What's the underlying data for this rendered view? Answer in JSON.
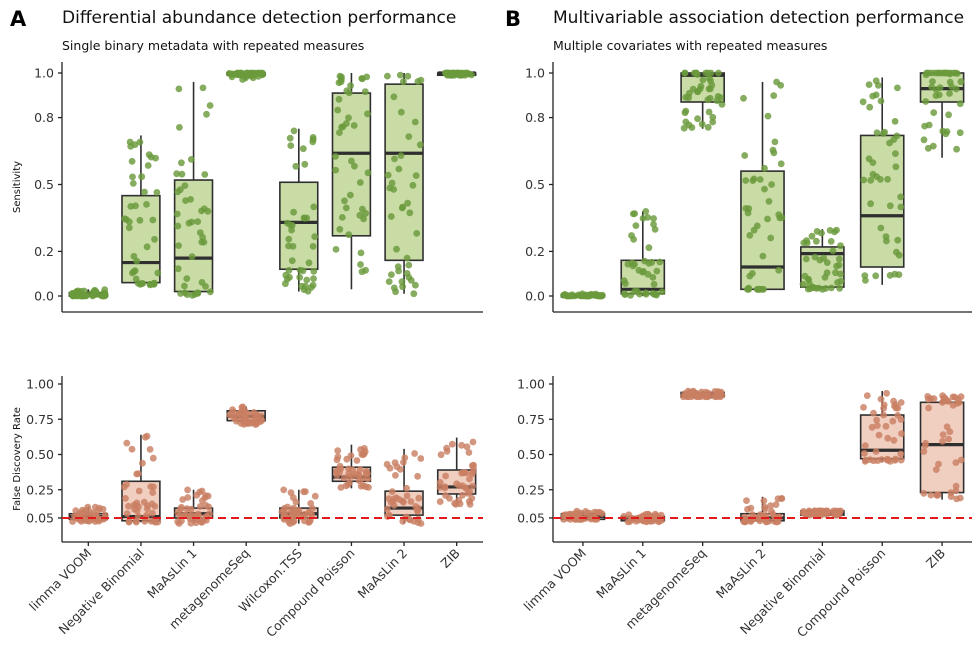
{
  "chart_data": [
    {
      "id": "A-sensitivity",
      "type": "box",
      "panel_letter": "A",
      "title": "Differential abundance detection performance",
      "subtitle": "Single binary metadata with repeated measures",
      "ylabel": "Sensitivity",
      "ylim": [
        0,
        1
      ],
      "yticks": [
        0.0,
        0.2,
        0.5,
        0.8,
        1.0
      ],
      "ytick_labels": [
        "0.0",
        "0.2",
        "0.5",
        "0.8",
        "1.0"
      ],
      "fill": "#c9dca6",
      "point_color": "#6a9a3c",
      "categories": [
        "limma VOOM",
        "Negative Binomial",
        "MaAsLin 1",
        "metagenomeSeq",
        "Wilcoxon.TSS",
        "Compound Poisson",
        "MaAsLin 2",
        "ZIB"
      ],
      "boxes": [
        {
          "low": 0.0,
          "q1": 0.0,
          "median": 0.005,
          "q3": 0.015,
          "high": 0.03
        },
        {
          "low": 0.05,
          "q1": 0.06,
          "median": 0.15,
          "q3": 0.45,
          "high": 0.72
        },
        {
          "low": 0.0,
          "q1": 0.02,
          "median": 0.17,
          "q3": 0.52,
          "high": 0.96
        },
        {
          "low": 0.97,
          "q1": 0.99,
          "median": 1.0,
          "q3": 1.0,
          "high": 1.0
        },
        {
          "low": 0.02,
          "q1": 0.12,
          "median": 0.33,
          "q3": 0.51,
          "high": 0.75
        },
        {
          "low": 0.03,
          "q1": 0.27,
          "median": 0.64,
          "q3": 0.91,
          "high": 1.0
        },
        {
          "low": 0.01,
          "q1": 0.16,
          "median": 0.64,
          "q3": 0.95,
          "high": 1.0
        },
        {
          "low": 0.99,
          "q1": 0.99,
          "median": 1.0,
          "q3": 1.0,
          "high": 1.0
        }
      ]
    },
    {
      "id": "B-sensitivity",
      "type": "box",
      "panel_letter": "B",
      "title": "Multivariable association detection performance",
      "subtitle": "Multiple covariates with repeated measures",
      "ylabel": "",
      "ylim": [
        0,
        1
      ],
      "yticks": [
        0.0,
        0.2,
        0.5,
        0.8,
        1.0
      ],
      "ytick_labels": [
        "0.0",
        "0.2",
        "0.5",
        "0.8",
        "1.0"
      ],
      "fill": "#c9dca6",
      "point_color": "#6a9a3c",
      "categories": [
        "limma VOOM",
        "MaAsLin 1",
        "metagenomeSeq",
        "MaAsLin 2",
        "Negative Binomial",
        "Compound Poisson",
        "ZIB"
      ],
      "boxes": [
        {
          "low": 0.0,
          "q1": 0.0,
          "median": 0.0,
          "q3": 0.005,
          "high": 0.01
        },
        {
          "low": 0.0,
          "q1": 0.01,
          "median": 0.03,
          "q3": 0.16,
          "high": 0.38
        },
        {
          "low": 0.75,
          "q1": 0.87,
          "median": 0.99,
          "q3": 1.0,
          "high": 1.0
        },
        {
          "low": 0.03,
          "q1": 0.03,
          "median": 0.13,
          "q3": 0.56,
          "high": 0.96
        },
        {
          "low": 0.03,
          "q1": 0.04,
          "median": 0.19,
          "q3": 0.22,
          "high": 0.3
        },
        {
          "low": 0.05,
          "q1": 0.13,
          "median": 0.36,
          "q3": 0.72,
          "high": 0.98
        },
        {
          "low": 0.62,
          "q1": 0.87,
          "median": 0.93,
          "q3": 1.0,
          "high": 1.0
        }
      ]
    },
    {
      "id": "A-fdr",
      "type": "box",
      "ylabel": "False Discovery Rate",
      "ylim": [
        0,
        1
      ],
      "yticks": [
        0.05,
        0.25,
        0.5,
        0.75,
        1.0
      ],
      "ytick_labels": [
        "0.05",
        "0.25",
        "0.50",
        "0.75",
        "1.00"
      ],
      "reference_line": 0.05,
      "reference_color": "#e31a1c",
      "fill": "#f1cfc0",
      "point_color": "#c97f63",
      "categories": [
        "limma VOOM",
        "Negative Binomial",
        "MaAsLin 1",
        "metagenomeSeq",
        "Wilcoxon.TSS",
        "Compound Poisson",
        "MaAsLin 2",
        "ZIB"
      ],
      "boxes": [
        {
          "low": 0.02,
          "q1": 0.04,
          "median": 0.06,
          "q3": 0.08,
          "high": 0.13
        },
        {
          "low": 0.02,
          "q1": 0.03,
          "median": 0.06,
          "q3": 0.31,
          "high": 0.64
        },
        {
          "low": 0.01,
          "q1": 0.05,
          "median": 0.08,
          "q3": 0.12,
          "high": 0.25
        },
        {
          "low": 0.71,
          "q1": 0.74,
          "median": 0.77,
          "q3": 0.81,
          "high": 0.84
        },
        {
          "low": 0.01,
          "q1": 0.05,
          "median": 0.08,
          "q3": 0.12,
          "high": 0.25
        },
        {
          "low": 0.26,
          "q1": 0.31,
          "median": 0.34,
          "q3": 0.41,
          "high": 0.57
        },
        {
          "low": 0.01,
          "q1": 0.07,
          "median": 0.12,
          "q3": 0.24,
          "high": 0.54
        },
        {
          "low": 0.14,
          "q1": 0.22,
          "median": 0.27,
          "q3": 0.39,
          "high": 0.62
        }
      ]
    },
    {
      "id": "B-fdr",
      "type": "box",
      "ylabel": "",
      "ylim": [
        0,
        1
      ],
      "yticks": [
        0.05,
        0.25,
        0.5,
        0.75,
        1.0
      ],
      "ytick_labels": [
        "0.05",
        "0.25",
        "0.50",
        "0.75",
        "1.00"
      ],
      "reference_line": 0.05,
      "reference_color": "#e31a1c",
      "fill": "#f1cfc0",
      "point_color": "#c97f63",
      "categories": [
        "limma VOOM",
        "MaAsLin 1",
        "metagenomeSeq",
        "MaAsLin 2",
        "Negative Binomial",
        "Compound Poisson",
        "ZIB"
      ],
      "boxes": [
        {
          "low": 0.04,
          "q1": 0.04,
          "median": 0.06,
          "q3": 0.08,
          "high": 0.1
        },
        {
          "low": 0.02,
          "q1": 0.03,
          "median": 0.04,
          "q3": 0.06,
          "high": 0.08
        },
        {
          "low": 0.91,
          "q1": 0.91,
          "median": 0.93,
          "q3": 0.94,
          "high": 0.95
        },
        {
          "low": 0.02,
          "q1": 0.03,
          "median": 0.05,
          "q3": 0.08,
          "high": 0.2
        },
        {
          "low": 0.07,
          "q1": 0.07,
          "median": 0.08,
          "q3": 0.1,
          "high": 0.1
        },
        {
          "low": 0.45,
          "q1": 0.47,
          "median": 0.53,
          "q3": 0.78,
          "high": 0.95
        },
        {
          "low": 0.18,
          "q1": 0.23,
          "median": 0.57,
          "q3": 0.87,
          "high": 0.92
        }
      ]
    }
  ]
}
